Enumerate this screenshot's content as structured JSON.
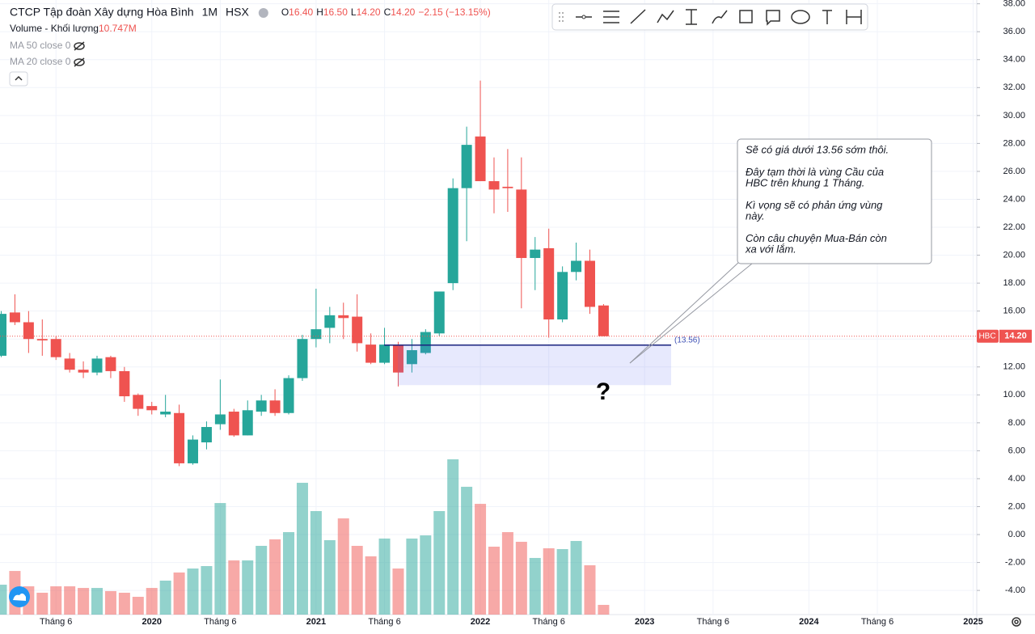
{
  "chart_data": {
    "type": "candlestick",
    "title": "CTCP Tập đoàn Xây dựng Hòa Bình",
    "interval": "1M",
    "exchange": "HSX",
    "ohlc_header": [
      {
        "label": "O",
        "value": "16.40"
      },
      {
        "label": "H",
        "value": "16.50"
      },
      {
        "label": "L",
        "value": "14.20"
      },
      {
        "label": "C",
        "value": "14.20"
      }
    ],
    "change": "−2.15 (−13.15%)",
    "indicators": [
      "MA 50 close 0",
      "MA 20 close 0"
    ],
    "up_color": "#26a69a",
    "down_color": "#ef5350",
    "categories": [
      null,
      null,
      null,
      null,
      "Tháng 6",
      null,
      null,
      null,
      null,
      null,
      null,
      "2020",
      null,
      null,
      null,
      null,
      "Tháng 6",
      null,
      null,
      null,
      null,
      null,
      null,
      "2021",
      null,
      null,
      null,
      null,
      "Tháng 6",
      null,
      null,
      null,
      null,
      null,
      null,
      "2022",
      null,
      null,
      null,
      null,
      "Tháng 6",
      null,
      null,
      null,
      null,
      null,
      null,
      "2023",
      null,
      null,
      null,
      null,
      "Tháng 6",
      null,
      null,
      null,
      null,
      null,
      null,
      "2024",
      null,
      null,
      null,
      null,
      "Tháng 6",
      null,
      null,
      null,
      null,
      null,
      null,
      "2025"
    ],
    "open": [
      12.8,
      15.9,
      15.2,
      14.0,
      14.0,
      12.6,
      11.8,
      11.6,
      12.7,
      11.7,
      10.0,
      9.2,
      8.6,
      8.7,
      5.1,
      6.6,
      7.9,
      8.8,
      7.1,
      8.8,
      9.6,
      8.7,
      11.2,
      14.0,
      14.8,
      15.7,
      15.6,
      13.6,
      12.3,
      13.6,
      12.2,
      13.0,
      14.4,
      18.0,
      24.8,
      28.5,
      25.3,
      24.9,
      24.7,
      19.8,
      20.5,
      15.4,
      18.8,
      19.6,
      16.4,
      null,
      null,
      null,
      null,
      null,
      null,
      null,
      null,
      null,
      null,
      null,
      null,
      null,
      null,
      null,
      null,
      null,
      null,
      null,
      null,
      null,
      null,
      null,
      null,
      null,
      null,
      null
    ],
    "high": [
      16.0,
      17.2,
      16.0,
      15.4,
      14.2,
      13.0,
      12.4,
      12.8,
      12.8,
      12.0,
      10.1,
      9.5,
      10.0,
      9.3,
      7.1,
      8.1,
      11.1,
      9.0,
      9.6,
      10.0,
      10.4,
      11.4,
      14.3,
      17.6,
      16.3,
      16.6,
      17.2,
      14.4,
      14.8,
      13.8,
      14.0,
      14.7,
      17.4,
      25.5,
      29.2,
      32.5,
      27.0,
      27.6,
      27.0,
      21.3,
      21.9,
      19.2,
      20.9,
      20.4,
      16.5,
      null,
      null,
      null,
      null,
      null,
      null,
      null,
      null,
      null,
      null,
      null,
      null,
      null,
      null,
      null,
      null,
      null,
      null,
      null,
      null,
      null,
      null,
      null,
      null,
      null,
      null,
      null
    ],
    "low": [
      12.7,
      15.0,
      13.0,
      12.8,
      12.5,
      11.6,
      11.2,
      11.4,
      11.2,
      9.5,
      8.5,
      8.6,
      8.4,
      4.9,
      5.0,
      6.1,
      7.5,
      7.0,
      7.1,
      8.5,
      8.5,
      8.6,
      11.0,
      13.4,
      13.7,
      14.0,
      13.1,
      12.2,
      12.2,
      10.6,
      11.6,
      12.9,
      14.2,
      17.5,
      21.0,
      25.3,
      23.0,
      23.1,
      16.2,
      17.5,
      14.1,
      15.2,
      18.2,
      15.8,
      14.2,
      null,
      null,
      null,
      null,
      null,
      null,
      null,
      null,
      null,
      null,
      null,
      null,
      null,
      null,
      null,
      null,
      null,
      null,
      null,
      null,
      null,
      null,
      null,
      null,
      null,
      null,
      null
    ],
    "close": [
      15.8,
      15.2,
      14.0,
      13.9,
      12.7,
      11.8,
      11.6,
      12.6,
      11.7,
      9.9,
      9.0,
      8.9,
      8.8,
      5.1,
      6.8,
      7.7,
      8.6,
      7.1,
      8.9,
      9.6,
      8.7,
      11.2,
      14.0,
      14.7,
      15.7,
      15.5,
      13.7,
      12.3,
      13.6,
      11.6,
      13.2,
      14.5,
      17.4,
      24.8,
      27.9,
      25.3,
      24.7,
      24.8,
      19.8,
      20.4,
      15.4,
      18.8,
      19.6,
      16.3,
      14.2,
      null,
      null,
      null,
      null,
      null,
      null,
      null,
      null,
      null,
      null,
      null,
      null,
      null,
      null,
      null,
      null,
      null,
      null,
      null,
      null,
      null,
      null,
      null,
      null,
      null,
      null,
      null
    ],
    "volume": {
      "name": "Volume - Khối lượng",
      "last_label": "10.747M",
      "values": [
        33.1,
        48.3,
        31.3,
        24.2,
        31.3,
        31.3,
        29.5,
        29.5,
        26.0,
        24.2,
        19.7,
        29.5,
        37.6,
        46.6,
        51.0,
        53.7,
        123.5,
        60.0,
        60.0,
        76.1,
        83.3,
        91.3,
        145.9,
        114.6,
        82.4,
        106.5,
        76.1,
        64.5,
        84.2,
        51.0,
        84.2,
        87.7,
        114.6,
        171.9,
        141.5,
        122.6,
        75.2,
        91.3,
        80.6,
        62.7,
        73.4,
        72.5,
        81.5,
        54.6,
        10.747,
        null,
        null,
        null,
        null,
        null,
        null,
        null,
        null,
        null,
        null,
        null,
        null,
        null,
        null,
        null,
        null,
        null,
        null,
        null,
        null,
        null,
        null,
        null,
        null,
        null,
        null,
        null
      ]
    },
    "ylim": [
      -5.73,
      38.27
    ],
    "yticks": [
      {
        "value": 38,
        "label": "38.00"
      },
      {
        "value": 36,
        "label": "36.00"
      },
      {
        "value": 34,
        "label": "34.00"
      },
      {
        "value": 32,
        "label": "32.00"
      },
      {
        "value": 30,
        "label": "30.00"
      },
      {
        "value": 28,
        "label": "28.00"
      },
      {
        "value": 26,
        "label": "26.00"
      },
      {
        "value": 24,
        "label": "24.00"
      },
      {
        "value": 22,
        "label": "22.00"
      },
      {
        "value": 20,
        "label": "20.00"
      },
      {
        "value": 18,
        "label": "18.00"
      },
      {
        "value": 16,
        "label": "16.00"
      },
      {
        "value": 14,
        "label": "14.00"
      },
      {
        "value": 12,
        "label": "12.00"
      },
      {
        "value": 10,
        "label": "10.00"
      },
      {
        "value": 8,
        "label": "8.00"
      },
      {
        "value": 6,
        "label": "6.00"
      },
      {
        "value": 4,
        "label": "4.00"
      },
      {
        "value": 2,
        "label": "2.00"
      },
      {
        "value": 0,
        "label": "0.00"
      },
      {
        "value": -2,
        "label": "-2.00"
      },
      {
        "value": -4,
        "label": "-4.00"
      }
    ],
    "last_price": {
      "symbol": "HBC",
      "value": 14.2,
      "label": "14.20"
    },
    "zone": {
      "level": 13.56,
      "level_label": "(13.56)",
      "low": 10.7
    },
    "question_mark": "?",
    "note": [
      "Sẽ có giá dưới 13.56 sớm thôi.",
      "",
      "Đây tạm thời là vùng Cầu của",
      "HBC trên khung 1 Tháng.",
      "",
      "Kì vọng sẽ có phản ứng vùng",
      "này.",
      "",
      "Còn câu chuyện Mua-Bán còn",
      "xa với lắm."
    ]
  }
}
